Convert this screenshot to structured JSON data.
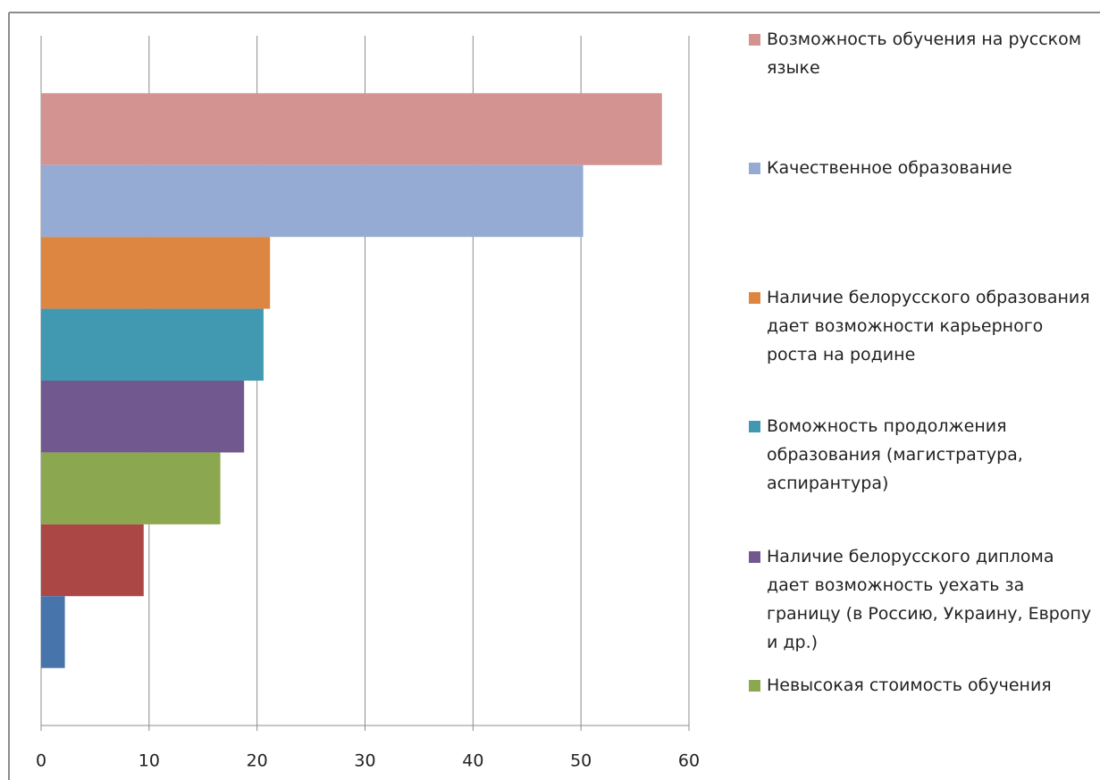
{
  "chart_data": {
    "type": "hbar",
    "xlim": [
      0,
      60
    ],
    "xticks": [
      0,
      10,
      20,
      30,
      40,
      50,
      60
    ],
    "grid": true,
    "series": [
      {
        "name": "Возможность обучения на русском языке",
        "color": "#d39391",
        "values": [
          57.5
        ]
      },
      {
        "name": "Качественное образование",
        "color": "#95abd3",
        "values": [
          50.2
        ]
      },
      {
        "name": "Наличие белорусского образования дает возможности карьерного роста на родине",
        "color": "#dd8642",
        "values": [
          21.2
        ]
      },
      {
        "name": "Воможность продолжения образования (магистратура, аспирантура)",
        "color": "#4099b0",
        "values": [
          20.6
        ]
      },
      {
        "name": "Наличие белорусского диплома дает возможность уехать за границу (в Россию, Украину, Европу и др.)",
        "color": "#715990",
        "values": [
          18.8
        ]
      },
      {
        "name": "Невысокая стоимость обучения",
        "color": "#8ba74f",
        "values": [
          16.6
        ]
      },
      {
        "name": null,
        "color": "#ab4744",
        "values": [
          9.5
        ]
      },
      {
        "name": null,
        "color": "#4774aa",
        "values": [
          2.2
        ]
      }
    ]
  }
}
